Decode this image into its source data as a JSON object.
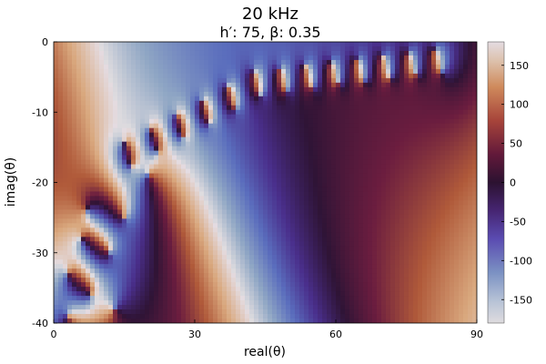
{
  "chart_data": {
    "type": "heatmap",
    "title": "20 kHz",
    "subtitle": "h′: 75, β: 0.35",
    "xlabel": "real(θ)",
    "ylabel": "imag(θ)",
    "xlim": [
      0,
      90
    ],
    "ylim": [
      -40,
      0
    ],
    "xticks": [
      "0",
      "30",
      "60",
      "90"
    ],
    "xtick_values": [
      0,
      30,
      60,
      90
    ],
    "yticks": [
      "0",
      "-10",
      "-20",
      "-30",
      "-40"
    ],
    "ytick_values": [
      0,
      -10,
      -20,
      -30,
      -40
    ],
    "colorbar": {
      "range": [
        -180,
        180
      ],
      "ticks": [
        "150",
        "100",
        "50",
        "0",
        "-50",
        "-100",
        "-150"
      ],
      "tick_values": [
        150,
        100,
        50,
        0,
        -50,
        -100,
        -150
      ],
      "colormap": "twilight_shifted"
    },
    "values_description": "phase angle in degrees, cyclic colormap",
    "colormap_stops": [
      "#dfdcdf",
      "#8fa6c4",
      "#5a6dbd",
      "#4a2f8c",
      "#2f1436",
      "#6b1d3f",
      "#b05a3a",
      "#d9a87e",
      "#e4dce2"
    ],
    "grid": false,
    "legend": "colorbar-right"
  }
}
